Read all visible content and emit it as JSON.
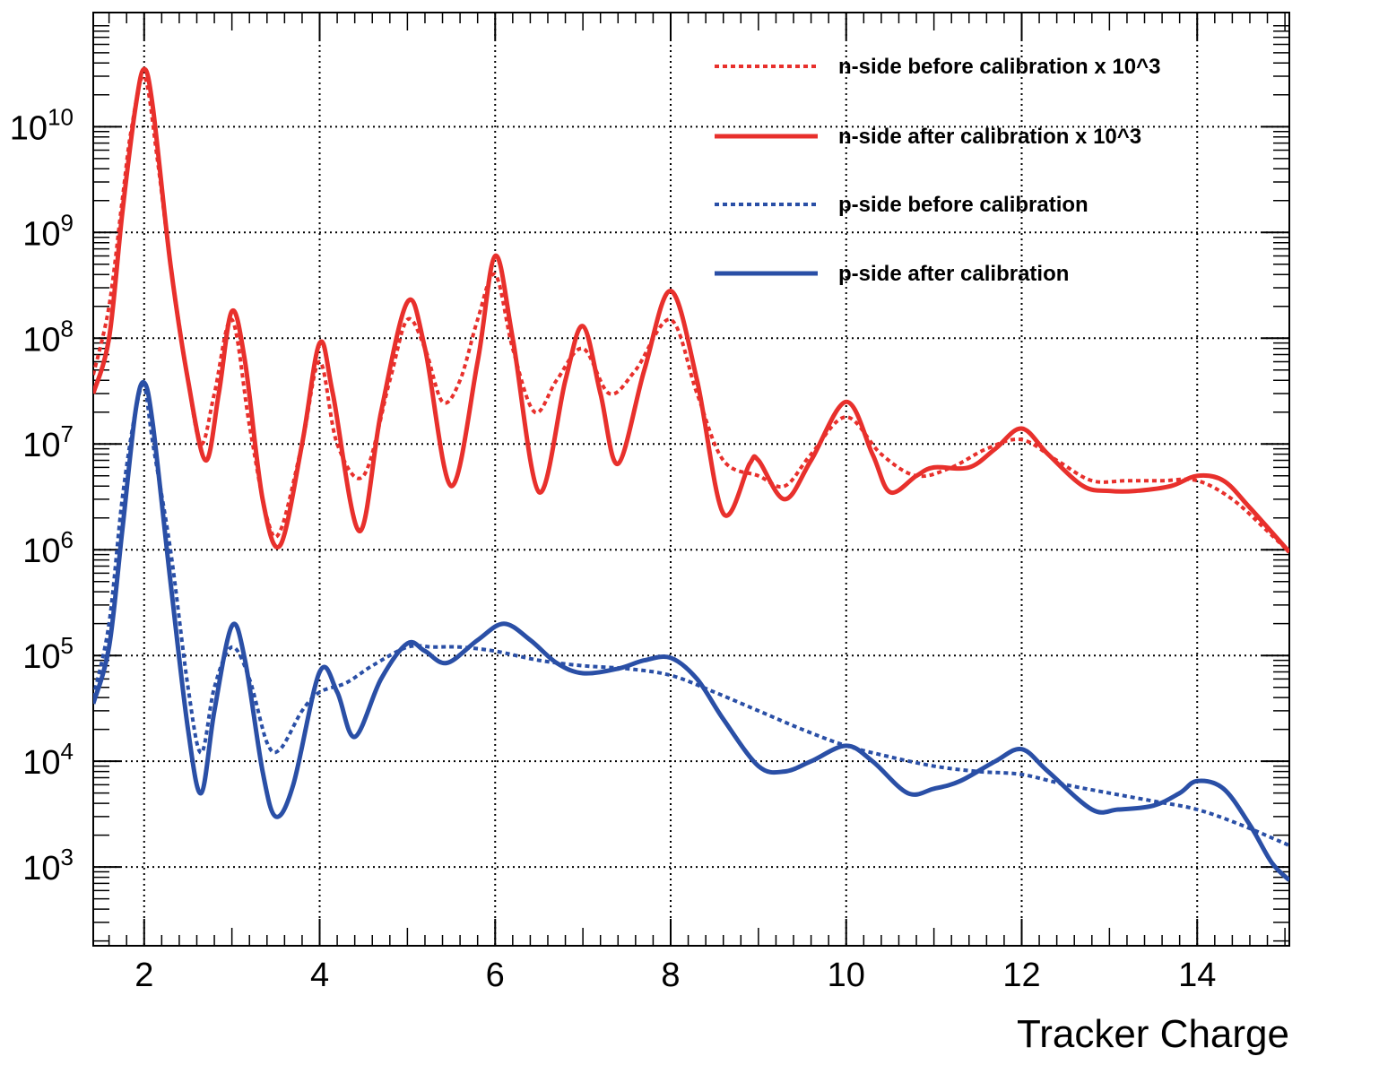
{
  "chart_data": {
    "type": "line",
    "xlabel": "Tracker Charge",
    "ylabel": "",
    "xlim": [
      1.42,
      15.05
    ],
    "ylim": [
      180,
      120000000000
    ],
    "yscale": "log",
    "grid": true,
    "legend_position": "top-right",
    "x_ticks": [
      2,
      4,
      6,
      8,
      10,
      12,
      14
    ],
    "x_tick_labels": [
      "2",
      "4",
      "6",
      "8",
      "10",
      "12",
      "14"
    ],
    "y_ticks": [
      1000,
      10000,
      100000,
      1000000,
      10000000,
      100000000,
      1000000000,
      10000000000
    ],
    "y_tick_bases": [
      "10",
      "10",
      "10",
      "10",
      "10",
      "10",
      "10",
      "10"
    ],
    "y_tick_exponents": [
      "3",
      "4",
      "5",
      "6",
      "7",
      "8",
      "9",
      "10"
    ],
    "colors": {
      "red": "#e8302c",
      "blue": "#2a4fa6"
    },
    "series": [
      {
        "name": "n-side before calibration x 10^3",
        "color": "#e8302c",
        "style": "dotted",
        "x": [
          1.42,
          1.6,
          1.75,
          1.85,
          2.0,
          2.15,
          2.3,
          2.5,
          2.65,
          2.8,
          3.0,
          3.2,
          3.4,
          3.55,
          3.8,
          4.0,
          4.2,
          4.5,
          4.8,
          5.0,
          5.2,
          5.4,
          5.6,
          5.8,
          6.0,
          6.2,
          6.45,
          6.7,
          7.0,
          7.3,
          7.6,
          8.0,
          8.3,
          8.6,
          9.0,
          9.3,
          9.6,
          10.0,
          10.4,
          10.8,
          11.2,
          11.6,
          12.0,
          12.4,
          12.8,
          13.2,
          13.6,
          14.0,
          14.4,
          14.8,
          15.05
        ],
        "values": [
          45000000,
          200000000,
          2000000000,
          9000000000,
          30000000000,
          5000000000,
          500000000,
          40000000,
          10000000,
          30000000,
          150000000,
          15000000,
          2000000,
          1500000,
          10000000,
          60000000,
          10000000,
          5000000,
          40000000,
          150000000,
          80000000,
          25000000,
          40000000,
          150000000,
          400000000,
          80000000,
          20000000,
          40000000,
          80000000,
          30000000,
          50000000,
          150000000,
          30000000,
          7000000,
          5000000,
          4000000,
          8000000,
          18000000,
          8000000,
          5000000,
          6000000,
          9000000,
          11000000,
          7000000,
          4500000,
          4500000,
          4500000,
          4500000,
          3000000,
          1500000,
          950000
        ]
      },
      {
        "name": "n-side after  calibration x 10^3",
        "color": "#e8302c",
        "style": "solid",
        "x": [
          1.42,
          1.6,
          1.75,
          1.9,
          2.0,
          2.1,
          2.3,
          2.5,
          2.7,
          2.85,
          3.0,
          3.15,
          3.35,
          3.55,
          3.8,
          4.0,
          4.15,
          4.45,
          4.7,
          5.0,
          5.2,
          5.5,
          5.8,
          6.0,
          6.2,
          6.5,
          6.8,
          7.0,
          7.2,
          7.4,
          7.7,
          8.0,
          8.3,
          8.6,
          8.9,
          9.0,
          9.3,
          9.6,
          10.0,
          10.3,
          10.5,
          10.8,
          11.0,
          11.4,
          11.7,
          12.0,
          12.3,
          12.7,
          13.0,
          13.3,
          13.7,
          14.0,
          14.3,
          14.6,
          15.05
        ],
        "values": [
          30000000,
          100000000,
          1500000000,
          15000000000,
          35000000000,
          15000000000,
          500000000,
          40000000,
          7000000,
          30000000,
          180000000,
          60000000,
          3000000,
          1100000,
          10000000,
          90000000,
          30000000,
          1500000,
          20000000,
          220000000,
          80000000,
          4000000,
          60000000,
          600000000,
          100000000,
          3500000,
          40000000,
          130000000,
          30000000,
          6500000,
          50000000,
          280000000,
          40000000,
          2200000,
          6500000,
          7000000,
          3000000,
          7000000,
          25000000,
          8000000,
          3500000,
          5000000,
          6000000,
          6000000,
          9000000,
          14000000,
          8000000,
          4000000,
          3600000,
          3600000,
          4000000,
          5000000,
          4500000,
          2500000,
          950000
        ]
      },
      {
        "name": "p-side before calibration",
        "color": "#2a4fa6",
        "style": "dotted",
        "x": [
          1.42,
          1.6,
          1.75,
          1.9,
          2.0,
          2.1,
          2.3,
          2.5,
          2.65,
          2.8,
          3.0,
          3.2,
          3.4,
          3.55,
          3.8,
          4.0,
          4.3,
          4.6,
          5.0,
          5.3,
          5.6,
          6.0,
          6.5,
          7.0,
          7.5,
          8.0,
          8.5,
          9.0,
          9.5,
          10.0,
          10.5,
          11.0,
          11.5,
          12.0,
          12.5,
          13.0,
          13.5,
          14.0,
          14.5,
          15.05
        ],
        "values": [
          40000,
          200000,
          3000000,
          20000000,
          35000000,
          10000000,
          1000000,
          50000,
          12000,
          50000,
          120000,
          60000,
          15000,
          13000,
          30000,
          45000,
          55000,
          80000,
          120000,
          120000,
          120000,
          110000,
          90000,
          80000,
          75000,
          65000,
          45000,
          30000,
          20000,
          14000,
          11000,
          9000,
          8000,
          7500,
          6000,
          5000,
          4200,
          3500,
          2500,
          1600
        ]
      },
      {
        "name": "p-side after  calibration",
        "color": "#2a4fa6",
        "style": "solid",
        "x": [
          1.42,
          1.6,
          1.75,
          1.9,
          2.0,
          2.1,
          2.3,
          2.5,
          2.65,
          2.8,
          3.0,
          3.15,
          3.35,
          3.5,
          3.7,
          4.0,
          4.2,
          4.4,
          4.7,
          5.0,
          5.2,
          5.45,
          5.8,
          6.1,
          6.4,
          6.7,
          7.0,
          7.4,
          7.7,
          8.0,
          8.3,
          8.6,
          9.0,
          9.3,
          9.6,
          10.0,
          10.3,
          10.7,
          11.0,
          11.3,
          11.7,
          12.0,
          12.3,
          12.8,
          13.1,
          13.5,
          13.8,
          14.0,
          14.3,
          14.6,
          14.85,
          15.05
        ],
        "values": [
          35000,
          120000,
          1500000,
          20000000,
          38000000,
          15000000,
          500000,
          20000,
          5000,
          30000,
          190000,
          90000,
          8000,
          3000,
          6000,
          70000,
          45000,
          17000,
          60000,
          130000,
          110000,
          85000,
          140000,
          200000,
          140000,
          85000,
          68000,
          75000,
          90000,
          95000,
          60000,
          25000,
          9000,
          8000,
          10000,
          14000,
          10000,
          5000,
          5500,
          6500,
          10000,
          13000,
          8000,
          3500,
          3500,
          3800,
          5000,
          6500,
          5500,
          2500,
          1100,
          750
        ]
      }
    ]
  }
}
